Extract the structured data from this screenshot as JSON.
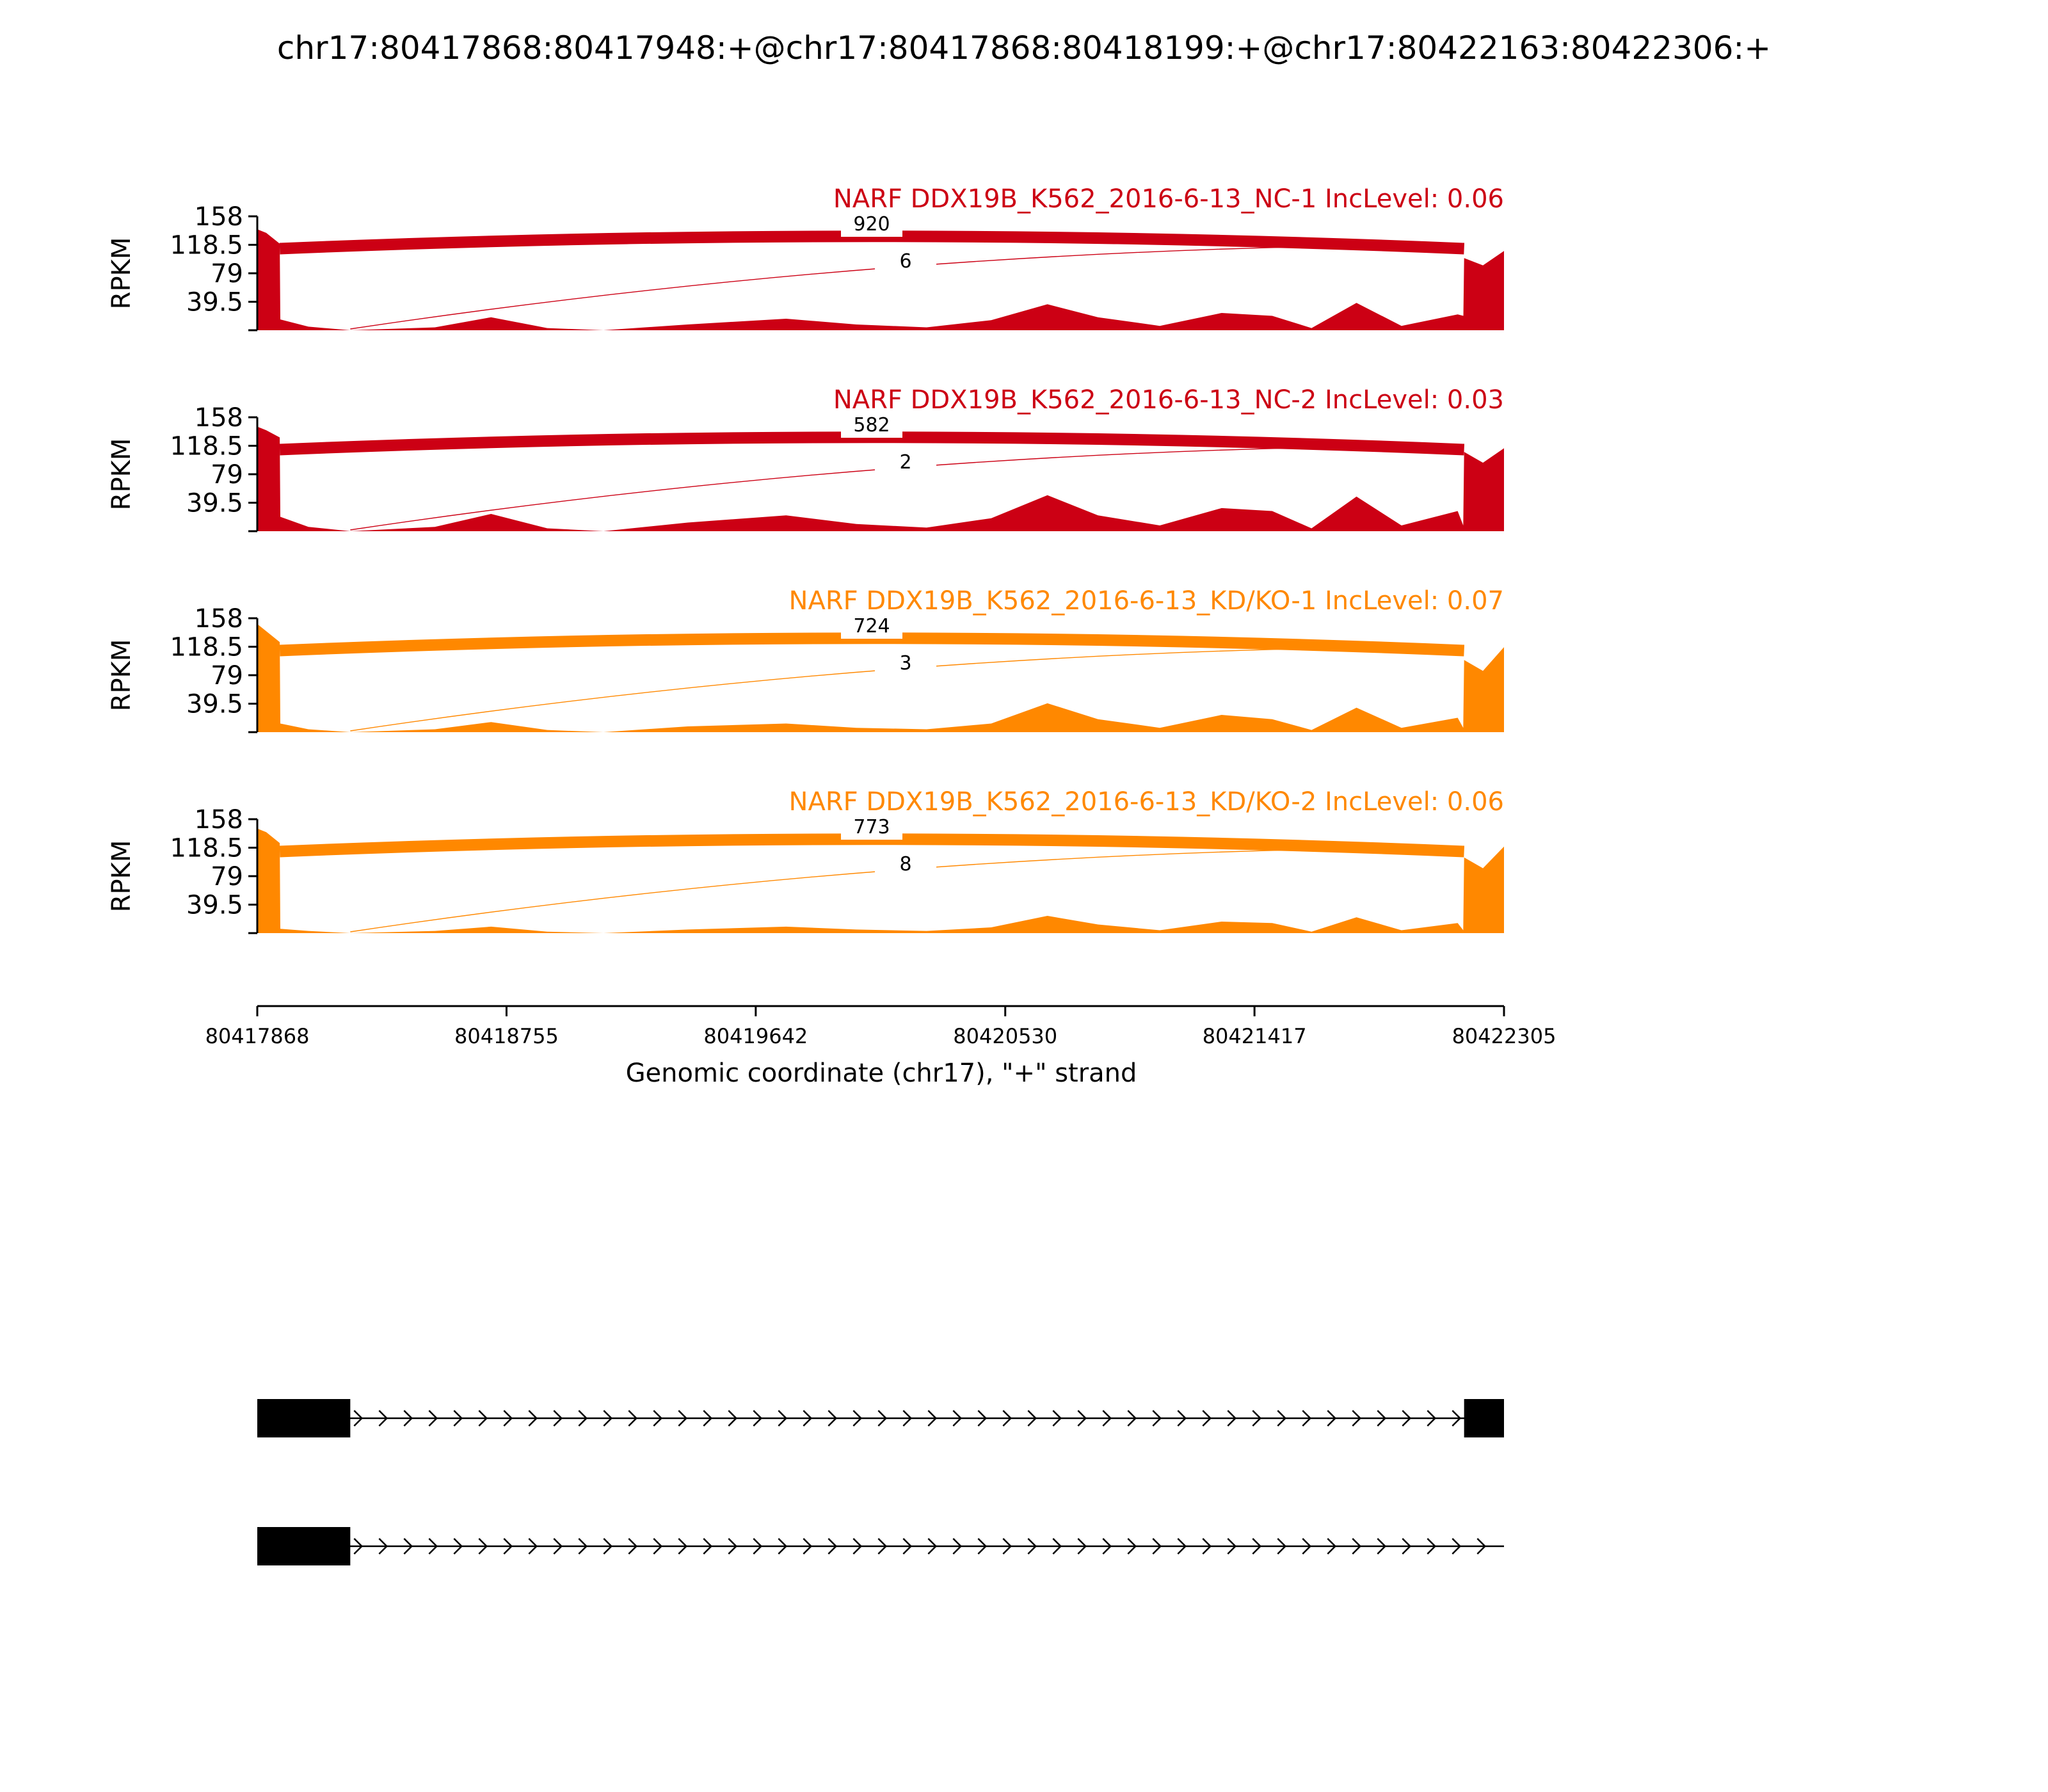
{
  "chart_data": {
    "type": "area",
    "title": "chr17:80417868:80417948:+@chr17:80417868:80418199:+@chr17:80422163:80422306:+",
    "xlabel": "Genomic coordinate (chr17), \"+\" strand",
    "ylabel": "RPKM",
    "xlim": [
      80417868,
      80422305
    ],
    "x_ticks": [
      "80417868",
      "80418755",
      "80419642",
      "80420530",
      "80421417",
      "80422305"
    ],
    "ylim": [
      0,
      158
    ],
    "y_ticks": [
      "158",
      "118.5",
      "79",
      "39.5"
    ],
    "colors": {
      "nc": "#cc0014",
      "kd": "#ff8800"
    },
    "series": [
      {
        "name": "NARF DDX19B_K562_2016-6-13_NC-1 IncLevel: 0.06",
        "color": "#cc0014",
        "junctions": [
          {
            "label": "920",
            "reads": 920,
            "start": 80417948,
            "end": 80422163
          },
          {
            "label": "6",
            "reads": 6,
            "start": 80418199,
            "end": 80422163
          }
        ],
        "coverage": [
          {
            "x": 80417868,
            "y": 140
          },
          {
            "x": 80417900,
            "y": 135
          },
          {
            "x": 80417948,
            "y": 120
          },
          {
            "x": 80417950,
            "y": 15
          },
          {
            "x": 80418050,
            "y": 5
          },
          {
            "x": 80418199,
            "y": 0
          },
          {
            "x": 80418500,
            "y": 4
          },
          {
            "x": 80418700,
            "y": 18
          },
          {
            "x": 80418900,
            "y": 3
          },
          {
            "x": 80419100,
            "y": 0
          },
          {
            "x": 80419400,
            "y": 8
          },
          {
            "x": 80419750,
            "y": 16
          },
          {
            "x": 80420000,
            "y": 8
          },
          {
            "x": 80420250,
            "y": 4
          },
          {
            "x": 80420480,
            "y": 14
          },
          {
            "x": 80420680,
            "y": 36
          },
          {
            "x": 80420860,
            "y": 18
          },
          {
            "x": 80421080,
            "y": 6
          },
          {
            "x": 80421300,
            "y": 24
          },
          {
            "x": 80421480,
            "y": 20
          },
          {
            "x": 80421620,
            "y": 3
          },
          {
            "x": 80421780,
            "y": 38
          },
          {
            "x": 80421940,
            "y": 6
          },
          {
            "x": 80422140,
            "y": 22
          },
          {
            "x": 80422300,
            "y": 6
          },
          {
            "x": 80422160,
            "y": 6
          },
          {
            "x": 80422163,
            "y": 100
          },
          {
            "x": 80422230,
            "y": 90
          },
          {
            "x": 80422305,
            "y": 110
          }
        ]
      },
      {
        "name": "NARF DDX19B_K562_2016-6-13_NC-2 IncLevel: 0.03",
        "color": "#cc0014",
        "junctions": [
          {
            "label": "582",
            "reads": 582,
            "start": 80417948,
            "end": 80422163
          },
          {
            "label": "2",
            "reads": 2,
            "start": 80418199,
            "end": 80422163
          }
        ],
        "coverage": [
          {
            "x": 80417868,
            "y": 145
          },
          {
            "x": 80417900,
            "y": 140
          },
          {
            "x": 80417948,
            "y": 130
          },
          {
            "x": 80417950,
            "y": 20
          },
          {
            "x": 80418050,
            "y": 6
          },
          {
            "x": 80418199,
            "y": 0
          },
          {
            "x": 80418500,
            "y": 6
          },
          {
            "x": 80418700,
            "y": 24
          },
          {
            "x": 80418900,
            "y": 4
          },
          {
            "x": 80419100,
            "y": 0
          },
          {
            "x": 80419400,
            "y": 12
          },
          {
            "x": 80419750,
            "y": 22
          },
          {
            "x": 80420000,
            "y": 10
          },
          {
            "x": 80420250,
            "y": 5
          },
          {
            "x": 80420480,
            "y": 18
          },
          {
            "x": 80420680,
            "y": 50
          },
          {
            "x": 80420860,
            "y": 22
          },
          {
            "x": 80421080,
            "y": 8
          },
          {
            "x": 80421300,
            "y": 32
          },
          {
            "x": 80421480,
            "y": 28
          },
          {
            "x": 80421620,
            "y": 4
          },
          {
            "x": 80421780,
            "y": 48
          },
          {
            "x": 80421940,
            "y": 8
          },
          {
            "x": 80422140,
            "y": 28
          },
          {
            "x": 80422160,
            "y": 8
          },
          {
            "x": 80422163,
            "y": 110
          },
          {
            "x": 80422230,
            "y": 95
          },
          {
            "x": 80422305,
            "y": 115
          }
        ]
      },
      {
        "name": "NARF DDX19B_K562_2016-6-13_KD/KO-1 IncLevel: 0.07",
        "color": "#ff8800",
        "junctions": [
          {
            "label": "724",
            "reads": 724,
            "start": 80417948,
            "end": 80422163
          },
          {
            "label": "3",
            "reads": 3,
            "start": 80418199,
            "end": 80422163
          }
        ],
        "coverage": [
          {
            "x": 80417868,
            "y": 150
          },
          {
            "x": 80417900,
            "y": 140
          },
          {
            "x": 80417948,
            "y": 125
          },
          {
            "x": 80417950,
            "y": 12
          },
          {
            "x": 80418050,
            "y": 4
          },
          {
            "x": 80418199,
            "y": 0
          },
          {
            "x": 80418500,
            "y": 4
          },
          {
            "x": 80418700,
            "y": 14
          },
          {
            "x": 80418900,
            "y": 3
          },
          {
            "x": 80419100,
            "y": 0
          },
          {
            "x": 80419400,
            "y": 8
          },
          {
            "x": 80419750,
            "y": 12
          },
          {
            "x": 80420000,
            "y": 6
          },
          {
            "x": 80420250,
            "y": 4
          },
          {
            "x": 80420480,
            "y": 12
          },
          {
            "x": 80420680,
            "y": 40
          },
          {
            "x": 80420860,
            "y": 18
          },
          {
            "x": 80421080,
            "y": 6
          },
          {
            "x": 80421300,
            "y": 24
          },
          {
            "x": 80421480,
            "y": 18
          },
          {
            "x": 80421620,
            "y": 3
          },
          {
            "x": 80421780,
            "y": 34
          },
          {
            "x": 80421940,
            "y": 6
          },
          {
            "x": 80422140,
            "y": 20
          },
          {
            "x": 80422160,
            "y": 6
          },
          {
            "x": 80422163,
            "y": 100
          },
          {
            "x": 80422230,
            "y": 85
          },
          {
            "x": 80422305,
            "y": 118
          }
        ]
      },
      {
        "name": "NARF DDX19B_K562_2016-6-13_KD/KO-2 IncLevel: 0.06",
        "color": "#ff8800",
        "junctions": [
          {
            "label": "773",
            "reads": 773,
            "start": 80417948,
            "end": 80422163
          },
          {
            "label": "8",
            "reads": 8,
            "start": 80418199,
            "end": 80422163
          }
        ],
        "coverage": [
          {
            "x": 80417868,
            "y": 145
          },
          {
            "x": 80417900,
            "y": 140
          },
          {
            "x": 80417948,
            "y": 125
          },
          {
            "x": 80417950,
            "y": 6
          },
          {
            "x": 80418050,
            "y": 3
          },
          {
            "x": 80418199,
            "y": 0
          },
          {
            "x": 80418500,
            "y": 3
          },
          {
            "x": 80418700,
            "y": 9
          },
          {
            "x": 80418900,
            "y": 2
          },
          {
            "x": 80419100,
            "y": 0
          },
          {
            "x": 80419400,
            "y": 5
          },
          {
            "x": 80419750,
            "y": 9
          },
          {
            "x": 80420000,
            "y": 5
          },
          {
            "x": 80420250,
            "y": 3
          },
          {
            "x": 80420480,
            "y": 8
          },
          {
            "x": 80420680,
            "y": 24
          },
          {
            "x": 80420860,
            "y": 12
          },
          {
            "x": 80421080,
            "y": 4
          },
          {
            "x": 80421300,
            "y": 16
          },
          {
            "x": 80421480,
            "y": 14
          },
          {
            "x": 80421620,
            "y": 2
          },
          {
            "x": 80421780,
            "y": 22
          },
          {
            "x": 80421940,
            "y": 4
          },
          {
            "x": 80422140,
            "y": 14
          },
          {
            "x": 80422160,
            "y": 4
          },
          {
            "x": 80422163,
            "y": 105
          },
          {
            "x": 80422230,
            "y": 90
          },
          {
            "x": 80422305,
            "y": 120
          }
        ]
      }
    ],
    "transcripts": [
      {
        "exons": [
          {
            "start": 80417868,
            "end": 80418199
          },
          {
            "start": 80422163,
            "end": 80422305
          }
        ]
      },
      {
        "exons": [
          {
            "start": 80417868,
            "end": 80418199
          }
        ]
      }
    ]
  }
}
